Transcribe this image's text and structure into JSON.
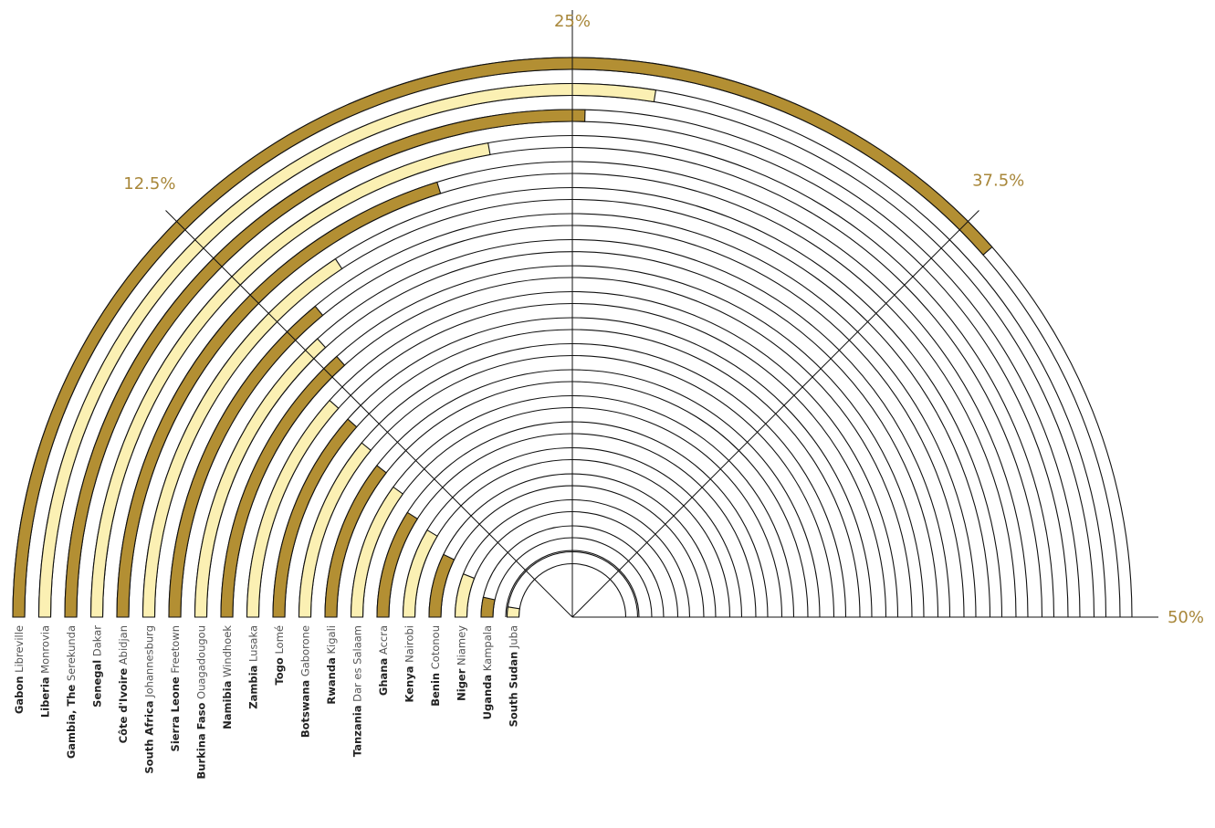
{
  "chart_data": {
    "type": "radial-bar",
    "title": "",
    "scale_labels": [
      "12.5%",
      "25%",
      "37.5%",
      "50%"
    ],
    "scale_ticks": [
      12.5,
      25,
      37.5,
      50
    ],
    "range": [
      0,
      50
    ],
    "colors": {
      "dark": "#b38f33",
      "light": "#fbf0b3",
      "outline": "#111111"
    },
    "series": [
      {
        "country": "Gabon",
        "capital": "Libreville",
        "value": 38.5,
        "shade": "dark"
      },
      {
        "country": "Liberia",
        "capital": "Monrovia",
        "value": 27.5,
        "shade": "light"
      },
      {
        "country": "Gambia, The",
        "capital": "Serekunda",
        "value": 25.4,
        "shade": "dark"
      },
      {
        "country": "Senegal",
        "capital": "Dakar",
        "value": 22.2,
        "shade": "light"
      },
      {
        "country": "Côte d'Ivoire",
        "capital": "Abidjan",
        "value": 20.2,
        "shade": "dark"
      },
      {
        "country": "South Africa",
        "capital": "Johannesburg",
        "value": 15.7,
        "shade": "light"
      },
      {
        "country": "Sierra Leone",
        "capital": "Freetown",
        "value": 14.0,
        "shade": "dark"
      },
      {
        "country": "Burkina Faso",
        "capital": "Ouagadougou",
        "value": 13.2,
        "shade": "light"
      },
      {
        "country": "Namibia",
        "capital": "Windhoek",
        "value": 13.3,
        "shade": "dark"
      },
      {
        "country": "Zambia",
        "capital": "Lusaka",
        "value": 11.6,
        "shade": "light"
      },
      {
        "country": "Togo",
        "capital": "Lomé",
        "value": 11.5,
        "shade": "dark"
      },
      {
        "country": "Botswana",
        "capital": "Gaborone",
        "value": 11.0,
        "shade": "light"
      },
      {
        "country": "Rwanda",
        "capital": "Kigali",
        "value": 10.5,
        "shade": "dark"
      },
      {
        "country": "Tanzania",
        "capital": "Dar es Salaam",
        "value": 10.0,
        "shade": "light"
      },
      {
        "country": "Ghana",
        "capital": "Accra",
        "value": 9.0,
        "shade": "dark"
      },
      {
        "country": "Kenya",
        "capital": "Nairobi",
        "value": 8.6,
        "shade": "light"
      },
      {
        "country": "Benin",
        "capital": "Cotonou",
        "value": 7.2,
        "shade": "dark"
      },
      {
        "country": "Niger",
        "capital": "Niamey",
        "value": 6.0,
        "shade": "light"
      },
      {
        "country": "Uganda",
        "capital": "Kampala",
        "value": 3.5,
        "shade": "dark"
      },
      {
        "country": "South Sudan",
        "capital": "Juba",
        "value": 2.5,
        "shade": "light"
      }
    ]
  }
}
